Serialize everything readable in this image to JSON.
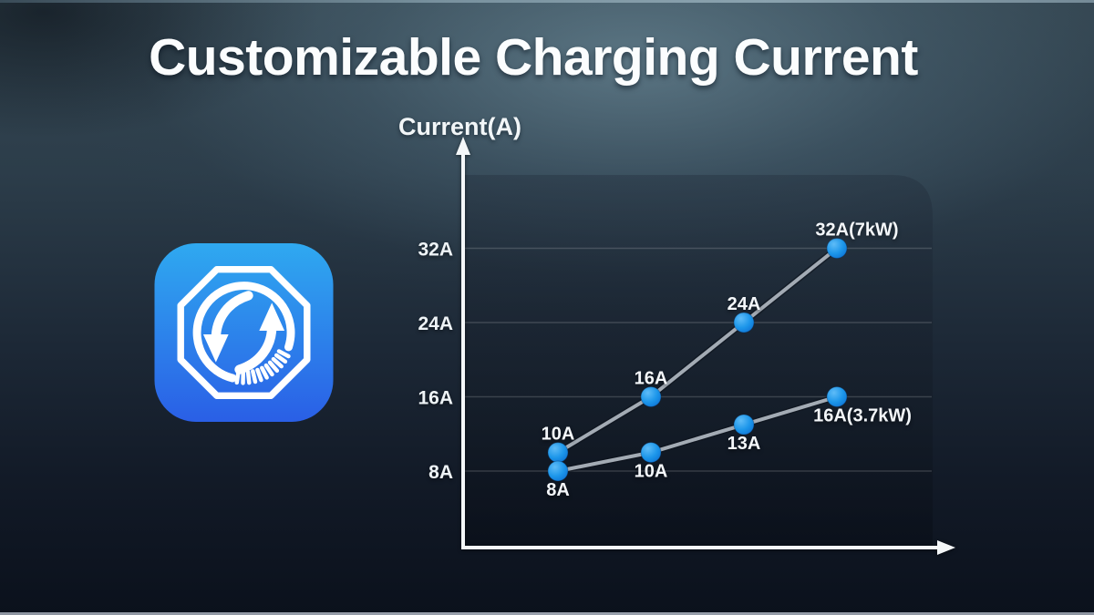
{
  "title": "Customizable Charging Current",
  "icon": {
    "name": "adjustable-current-sync-dial-icon",
    "gradient_top": "#2fa9f0",
    "gradient_bottom": "#2a5fe6",
    "glyph_color": "#ffffff"
  },
  "chart_data": {
    "type": "line",
    "title": "",
    "xlabel": "",
    "ylabel": "Current(A)",
    "grid": "horizontal",
    "legend": "none",
    "axis_color": "#f4f7f9",
    "line_color": "#a3abb4",
    "dot_color": "#1c96ea",
    "yticks": [
      {
        "value": 8,
        "label": "8A"
      },
      {
        "value": 16,
        "label": "16A"
      },
      {
        "value": 24,
        "label": "24A"
      },
      {
        "value": 32,
        "label": "32A"
      }
    ],
    "ylim": [
      8,
      32
    ],
    "series": [
      {
        "name": "upper-line-7kW",
        "points": [
          {
            "value": 10,
            "label": "10A",
            "label_pos": "above"
          },
          {
            "value": 16,
            "label": "16A",
            "label_pos": "above"
          },
          {
            "value": 24,
            "label": "24A",
            "label_pos": "above"
          },
          {
            "value": 32,
            "label": "32A(7kW)",
            "label_pos": "above",
            "label_dx": 22
          }
        ]
      },
      {
        "name": "lower-line-3.7kW",
        "points": [
          {
            "value": 8,
            "label": "8A",
            "label_pos": "below"
          },
          {
            "value": 10,
            "label": "10A",
            "label_pos": "below"
          },
          {
            "value": 13,
            "label": "13A",
            "label_pos": "below"
          },
          {
            "value": 16,
            "label": "16A(3.7kW)",
            "label_pos": "below",
            "label_dx": 28
          }
        ]
      }
    ]
  }
}
